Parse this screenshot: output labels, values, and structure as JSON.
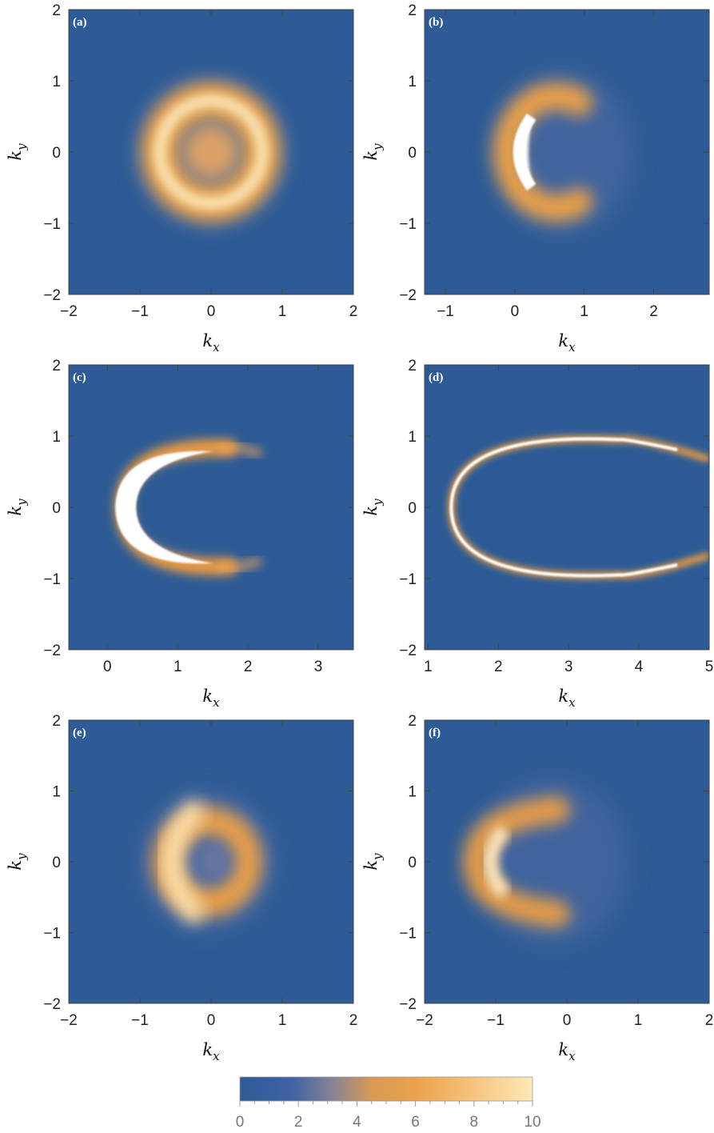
{
  "chart_data": {
    "type": "heatmap",
    "colorscale": [
      "#2e5b95",
      "#3f63a3",
      "#e39a45",
      "#f4b867",
      "#fde9b8"
    ],
    "colorbar": {
      "range": [
        0,
        10
      ],
      "ticks": [
        "0",
        "2",
        "4",
        "6",
        "8",
        "10"
      ]
    },
    "panels": [
      {
        "label": "(a)",
        "xlabel": "k_x",
        "ylabel": "k_y",
        "xlim": [
          -2,
          2
        ],
        "ylim": [
          -2,
          2
        ],
        "xticks": [
          "−2",
          "−1",
          "0",
          "1",
          "2"
        ],
        "yticks": [
          "−2",
          "−1",
          "0",
          "1",
          "2"
        ],
        "feature": {
          "shape": "ring",
          "center": [
            0,
            0
          ],
          "radius": 0.72,
          "peak_value": 9
        }
      },
      {
        "label": "(b)",
        "xlabel": "k_x",
        "ylabel": "k_y",
        "xlim": [
          -1.3,
          2.8
        ],
        "ylim": [
          -2,
          2
        ],
        "xticks": [
          "−1",
          "0",
          "1",
          "2"
        ],
        "yticks": [
          "−2",
          "−1",
          "0",
          "1",
          "2"
        ],
        "feature": {
          "shape": "crescent",
          "center": [
            0.7,
            0
          ],
          "radius": 0.68,
          "peak_value": 10
        }
      },
      {
        "label": "(c)",
        "xlabel": "k_x",
        "ylabel": "k_y",
        "xlim": [
          -0.55,
          3.5
        ],
        "ylim": [
          -2,
          2
        ],
        "xticks": [
          "0",
          "1",
          "2",
          "3"
        ],
        "yticks": [
          "−2",
          "−1",
          "0",
          "1",
          "2"
        ],
        "feature": {
          "shape": "crescent",
          "center": [
            1.5,
            0
          ],
          "radius": 0.92,
          "peak_value": 10
        }
      },
      {
        "label": "(d)",
        "xlabel": "k_x",
        "ylabel": "k_y",
        "xlim": [
          0.95,
          5.0
        ],
        "ylim": [
          -2,
          2
        ],
        "xticks": [
          "1",
          "2",
          "3",
          "4",
          "5"
        ],
        "yticks": [
          "−2",
          "−1",
          "0",
          "1",
          "2"
        ],
        "feature": {
          "shape": "open-loop",
          "vertex": [
            1.33,
            0
          ],
          "half_width": 0.95,
          "peak_value": 10
        }
      },
      {
        "label": "(e)",
        "xlabel": "k_x",
        "ylabel": "k_y",
        "xlim": [
          -2,
          2
        ],
        "ylim": [
          -2,
          2
        ],
        "xticks": [
          "−2",
          "−1",
          "0",
          "1",
          "2"
        ],
        "yticks": [
          "−2",
          "−1",
          "0",
          "1",
          "2"
        ],
        "feature": {
          "shape": "ring-asymmetric",
          "center": [
            -0.05,
            0
          ],
          "radius": 0.6,
          "peak_value": 8
        }
      },
      {
        "label": "(f)",
        "xlabel": "k_x",
        "ylabel": "k_y",
        "xlim": [
          -2,
          2
        ],
        "ylim": [
          -2,
          2
        ],
        "xticks": [
          "−2",
          "−1",
          "0",
          "1",
          "2"
        ],
        "yticks": [
          "−2",
          "−1",
          "0",
          "1",
          "2"
        ],
        "feature": {
          "shape": "crescent",
          "center": [
            -0.2,
            0
          ],
          "radius": 0.6,
          "peak_value": 8
        }
      }
    ]
  }
}
